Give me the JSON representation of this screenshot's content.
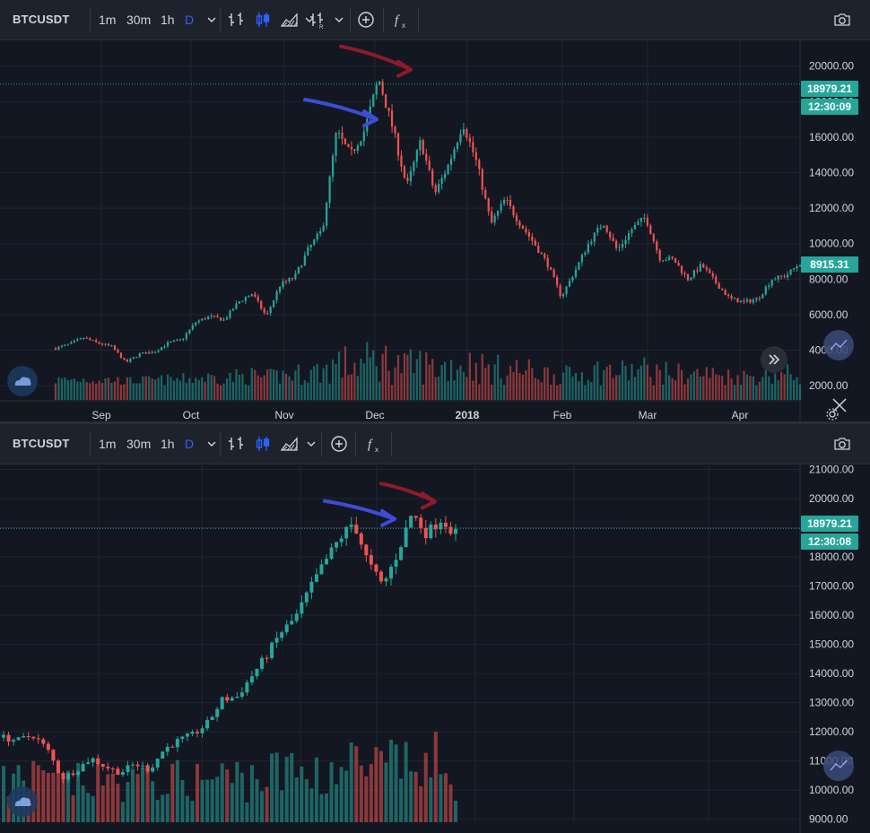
{
  "colors": {
    "background": "#131722",
    "toolbar": "#1e222d",
    "up": "#26a69a",
    "down": "#ef5350",
    "accent": "#2962ff",
    "grid": "#1f2430",
    "arrow_red": "#8e1a2c",
    "arrow_blue": "#3f4bd6"
  },
  "top_panel": {
    "symbol": "BTCUSDT",
    "intervals": [
      "1m",
      "30m",
      "1h",
      "D"
    ],
    "active_interval": "D",
    "icons": [
      "chevron-down-icon",
      "bars-chart-icon",
      "candles-chart-icon",
      "area-chart-icon",
      "chevron-down-icon",
      "bars-replay-icon",
      "chevron-down-icon",
      "add-compare-icon",
      "indicators-fx-icon",
      "camera-icon"
    ],
    "price_tag": "18979.21",
    "countdown_tag": "12:30:09",
    "last_price_tag": "8915.31"
  },
  "bottom_panel": {
    "symbol": "BTCUSDT",
    "intervals": [
      "1m",
      "30m",
      "1h",
      "D"
    ],
    "active_interval": "D",
    "icons": [
      "chevron-down-icon",
      "bars-chart-icon",
      "candles-chart-icon",
      "area-chart-icon",
      "chevron-down-icon",
      "add-compare-icon",
      "indicators-fx-icon",
      "camera-icon"
    ],
    "price_tag": "18979.21",
    "countdown_tag": "12:30:08"
  },
  "chart_data": [
    {
      "type": "candlestick",
      "symbol": "BTCUSDT",
      "interval": "D",
      "y_ticks": [
        2000,
        4000,
        6000,
        8000,
        10000,
        12000,
        14000,
        16000,
        18000,
        20000
      ],
      "y_tick_labels": [
        "2000.00",
        "4000.00",
        "6000.00",
        "8000.00",
        "10000.00",
        "12000.00",
        "14000.00",
        "16000.00",
        "18000.00",
        "20000.00"
      ],
      "ylim": [
        1200,
        21500
      ],
      "x_tick_labels": [
        "Sep",
        "Oct",
        "Nov",
        "Dec",
        "2018",
        "Feb",
        "Mar",
        "Apr"
      ],
      "close_path": [
        [
          "Aug 22",
          4100
        ],
        [
          "Aug 28",
          4350
        ],
        [
          "Sep 1",
          4700
        ],
        [
          "Sep 5",
          4400
        ],
        [
          "Sep 10",
          4200
        ],
        [
          "Sep 15",
          3300
        ],
        [
          "Sep 18",
          3800
        ],
        [
          "Sep 25",
          3900
        ],
        [
          "Oct 1",
          4400
        ],
        [
          "Oct 8",
          4600
        ],
        [
          "Oct 13",
          5600
        ],
        [
          "Oct 20",
          5900
        ],
        [
          "Oct 25",
          5700
        ],
        [
          "Nov 1",
          6700
        ],
        [
          "Nov 6",
          7200
        ],
        [
          "Nov 12",
          5900
        ],
        [
          "Nov 16",
          7700
        ],
        [
          "Nov 22",
          8100
        ],
        [
          "Nov 27",
          9700
        ],
        [
          "Dec 1",
          10800
        ],
        [
          "Dec 7",
          16300
        ],
        [
          "Dec 10",
          15000
        ],
        [
          "Dec 14",
          16400
        ],
        [
          "Dec 17",
          19300
        ],
        [
          "Dec 20",
          16500
        ],
        [
          "Dec 22",
          13200
        ],
        [
          "Dec 26",
          15800
        ],
        [
          "Dec 30",
          12800
        ],
        [
          "Jan 2",
          14500
        ],
        [
          "Jan 6",
          16800
        ],
        [
          "Jan 10",
          14500
        ],
        [
          "Jan 16",
          11100
        ],
        [
          "Jan 20",
          12500
        ],
        [
          "Jan 25",
          11200
        ],
        [
          "Jan 30",
          10100
        ],
        [
          "Feb 2",
          8900
        ],
        [
          "Feb 6",
          7000
        ],
        [
          "Feb 10",
          8500
        ],
        [
          "Feb 15",
          10100
        ],
        [
          "Feb 20",
          11200
        ],
        [
          "Feb 24",
          9600
        ],
        [
          "Mar 1",
          10800
        ],
        [
          "Mar 5",
          11500
        ],
        [
          "Mar 9",
          9200
        ],
        [
          "Mar 13",
          9100
        ],
        [
          "Mar 17",
          8000
        ],
        [
          "Mar 22",
          8800
        ],
        [
          "Mar 27",
          7800
        ],
        [
          "Apr 1",
          6900
        ],
        [
          "Apr 6",
          6700
        ],
        [
          "Apr 11",
          6900
        ],
        [
          "Apr 14",
          8000
        ],
        [
          "Apr 18",
          8200
        ],
        [
          "Apr 20",
          8915
        ]
      ],
      "highlight_points": [
        {
          "label": "peak",
          "value": 19800
        },
        {
          "label": "first high",
          "value": 17000
        }
      ],
      "last_value": 8915.31,
      "marked_price": 18979.21
    },
    {
      "type": "candlestick",
      "symbol": "BTCUSDT",
      "interval": "D",
      "y_ticks": [
        9000,
        10000,
        11000,
        12000,
        13000,
        14000,
        15000,
        16000,
        17000,
        18000,
        19000,
        20000,
        21000
      ],
      "y_tick_labels": [
        "9000.00",
        "10000.00",
        "11000.00",
        "12000.00",
        "13000.00",
        "14000.00",
        "15000.00",
        "16000.00",
        "17000.00",
        "18000.00",
        "19000.00",
        "20000.00",
        "21000.00"
      ],
      "ylim": [
        8900,
        21200
      ],
      "close_path": [
        [
          0,
          11800
        ],
        [
          5,
          11700
        ],
        [
          10,
          11900
        ],
        [
          12,
          11400
        ],
        [
          14,
          10400
        ],
        [
          18,
          10700
        ],
        [
          22,
          11100
        ],
        [
          26,
          10800
        ],
        [
          30,
          10600
        ],
        [
          33,
          10900
        ],
        [
          36,
          10700
        ],
        [
          40,
          11400
        ],
        [
          43,
          11700
        ],
        [
          46,
          11900
        ],
        [
          48,
          12300
        ],
        [
          52,
          13100
        ],
        [
          55,
          13200
        ],
        [
          58,
          13900
        ],
        [
          61,
          14600
        ],
        [
          64,
          15400
        ],
        [
          67,
          15900
        ],
        [
          70,
          16900
        ],
        [
          73,
          17800
        ],
        [
          76,
          18600
        ],
        [
          78,
          19200
        ],
        [
          80,
          17800
        ],
        [
          82,
          17000
        ],
        [
          84,
          18100
        ],
        [
          86,
          19500
        ],
        [
          88,
          18800
        ],
        [
          90,
          19300
        ],
        [
          92,
          18800
        ]
      ],
      "highlight_points": [
        {
          "label": "peak",
          "value": 19900
        },
        {
          "label": "first high",
          "value": 19300
        }
      ],
      "marked_price": 18979.21
    }
  ]
}
